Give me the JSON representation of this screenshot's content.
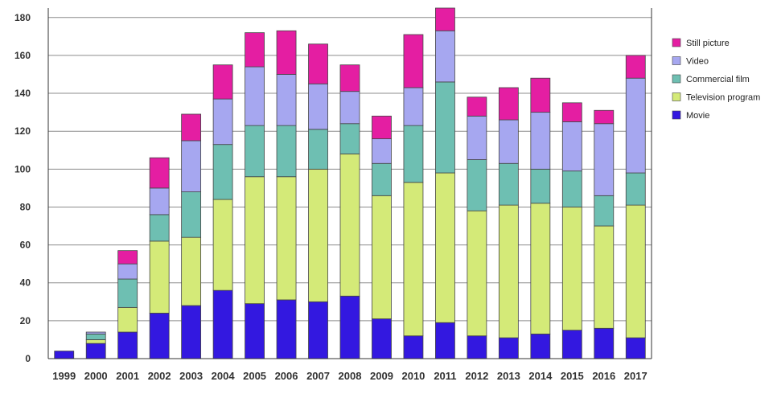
{
  "chart_data": {
    "type": "bar",
    "stacked": true,
    "title": "",
    "xlabel": "",
    "ylabel": "",
    "ylim": [
      0,
      185
    ],
    "yticks": [
      0,
      20,
      40,
      60,
      80,
      100,
      120,
      140,
      160,
      180
    ],
    "grid": true,
    "legend_position": "right",
    "categories": [
      "1999",
      "2000",
      "2001",
      "2002",
      "2003",
      "2004",
      "2005",
      "2006",
      "2007",
      "2008",
      "2009",
      "2010",
      "2011",
      "2012",
      "2013",
      "2014",
      "2015",
      "2016",
      "2017"
    ],
    "series": [
      {
        "name": "Movie",
        "color": "#3318e0",
        "values": [
          4,
          8,
          14,
          24,
          28,
          36,
          29,
          31,
          30,
          33,
          21,
          12,
          19,
          12,
          11,
          13,
          15,
          16,
          11
        ]
      },
      {
        "name": "Television program",
        "color": "#d4ea78",
        "values": [
          0,
          2,
          13,
          38,
          36,
          48,
          67,
          65,
          70,
          75,
          65,
          81,
          79,
          66,
          70,
          69,
          65,
          54,
          70
        ]
      },
      {
        "name": "Commercial film",
        "color": "#6ebfb2",
        "values": [
          0,
          3,
          15,
          14,
          24,
          29,
          27,
          27,
          21,
          16,
          17,
          30,
          48,
          27,
          22,
          18,
          19,
          16,
          17
        ]
      },
      {
        "name": "Video",
        "color": "#a6a7f0",
        "values": [
          0,
          1,
          8,
          14,
          27,
          24,
          31,
          27,
          24,
          17,
          13,
          20,
          27,
          23,
          23,
          30,
          26,
          38,
          50
        ]
      },
      {
        "name": "Still picture",
        "color": "#e41ea2",
        "values": [
          0,
          0,
          7,
          16,
          14,
          18,
          18,
          23,
          21,
          14,
          12,
          28,
          12,
          10,
          17,
          18,
          10,
          7,
          12
        ]
      }
    ],
    "legend_order": [
      "Still picture",
      "Video",
      "Commercial film",
      "Television program",
      "Movie"
    ]
  }
}
